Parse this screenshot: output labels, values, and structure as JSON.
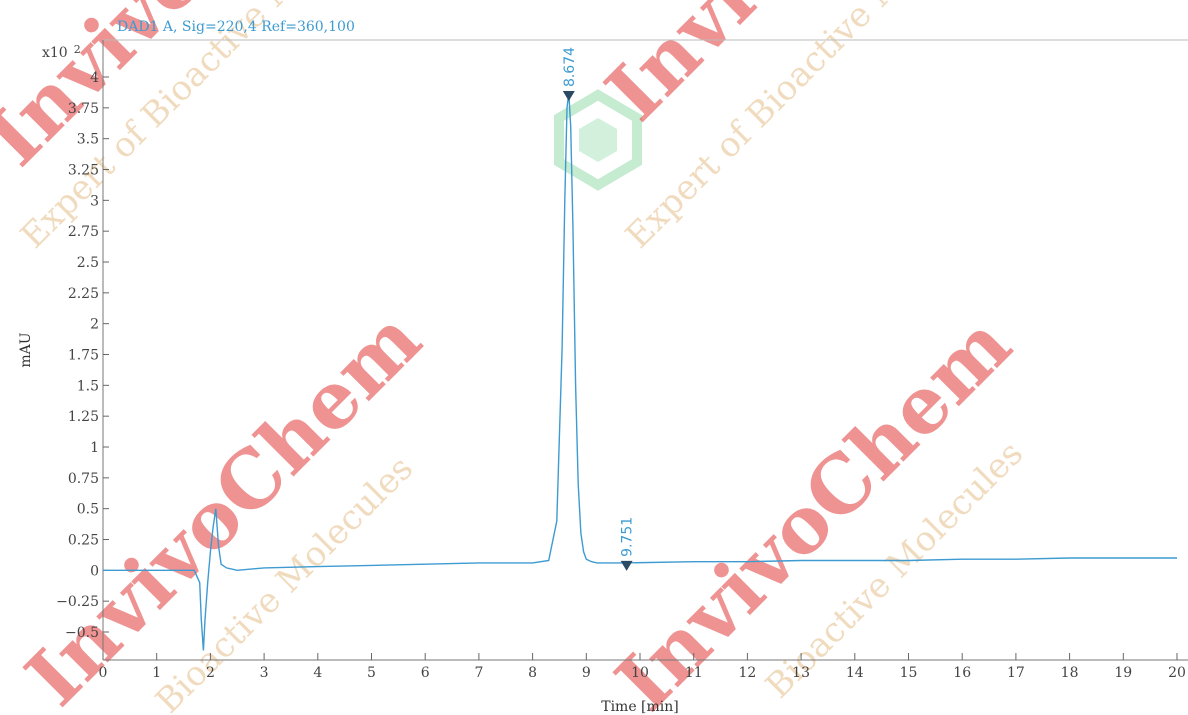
{
  "chart_data": {
    "type": "line",
    "title": "DAD1 A, Sig=220,4 Ref=360,100",
    "xlabel": "Time [min]",
    "ylabel": "mAU",
    "y_multiplier_label": "x10",
    "y_multiplier_exponent": "2",
    "xlim": [
      0,
      20
    ],
    "ylim": [
      -0.7,
      4.2
    ],
    "x_ticks": [
      0,
      1,
      2,
      3,
      4,
      5,
      6,
      7,
      8,
      9,
      10,
      11,
      12,
      13,
      14,
      15,
      16,
      17,
      18,
      19,
      20
    ],
    "x_tick_labels": [
      "0",
      "1",
      "2",
      "3",
      "4",
      "5",
      "6",
      "7",
      "8",
      "9",
      "10",
      "11",
      "12",
      "13",
      "14",
      "15",
      "16",
      "17",
      "18",
      "19",
      "20"
    ],
    "y_ticks": [
      -0.5,
      -0.25,
      0,
      0.25,
      0.5,
      0.75,
      1,
      1.25,
      1.5,
      1.75,
      2,
      2.25,
      2.5,
      2.75,
      3,
      3.25,
      3.5,
      3.75,
      4
    ],
    "y_tick_labels": [
      "−0.5",
      "−0.25",
      "0",
      "0.25",
      "0.5",
      "0.75",
      "1",
      "1.25",
      "1.5",
      "1.75",
      "2",
      "2.25",
      "2.5",
      "2.75",
      "3",
      "3.25",
      "3.5",
      "3.75",
      "4"
    ],
    "grid": false,
    "line_color": "#3d9bd1",
    "series": [
      {
        "x": [
          0,
          1.7,
          1.8,
          1.83,
          1.87,
          1.9,
          1.95,
          2.0,
          2.05,
          2.1,
          2.15,
          2.2,
          2.3,
          2.5,
          3,
          4,
          5,
          6,
          7,
          8,
          8.3,
          8.45,
          8.55,
          8.6,
          8.64,
          8.674,
          8.71,
          8.75,
          8.8,
          8.85,
          8.9,
          8.95,
          9.0,
          9.1,
          9.2,
          9.4,
          9.751,
          11,
          12,
          13,
          14,
          15,
          16,
          17,
          18,
          19,
          20
        ],
        "y": [
          0.0,
          0.0,
          -0.1,
          -0.4,
          -0.65,
          -0.4,
          -0.1,
          0.15,
          0.35,
          0.5,
          0.2,
          0.05,
          0.02,
          0.0,
          0.02,
          0.03,
          0.04,
          0.05,
          0.06,
          0.06,
          0.08,
          0.4,
          1.8,
          3.0,
          3.75,
          3.87,
          3.6,
          2.8,
          1.5,
          0.7,
          0.3,
          0.15,
          0.09,
          0.07,
          0.06,
          0.06,
          0.06,
          0.07,
          0.07,
          0.08,
          0.08,
          0.08,
          0.09,
          0.09,
          0.1,
          0.1,
          0.1
        ]
      }
    ],
    "peaks": [
      {
        "x": 8.674,
        "y": 3.87,
        "label": "8.674"
      },
      {
        "x": 9.751,
        "y": 0.06,
        "label": "9.751"
      }
    ]
  },
  "watermark": {
    "brand": "InvivoChem",
    "tagline_1": "Expert of Bioactive Molecules",
    "tagline_2": "Bioactive Molecules",
    "colors": {
      "red": "#e23a3a",
      "gold": "#e0b070",
      "green": "#7fd39a"
    }
  }
}
